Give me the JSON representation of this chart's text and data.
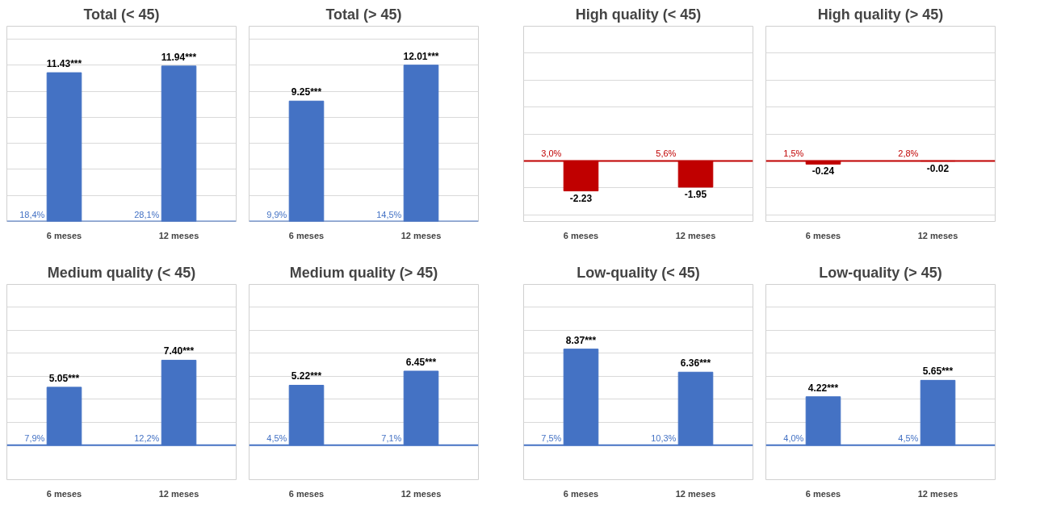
{
  "chart_data": [
    {
      "type": "bar",
      "title": "Total (< 45)",
      "categories": [
        "6 meses",
        "12 meses"
      ],
      "values": [
        11.43,
        11.94
      ],
      "value_labels": [
        "11.43***",
        "11.94***"
      ],
      "color": "#4472c4",
      "ylim": [
        0,
        15
      ],
      "yticks": [
        {
          "value": 0,
          "label": null
        },
        {
          "value": 2,
          "label": null
        },
        {
          "value": 4,
          "label": null
        },
        {
          "value": 6,
          "label": null
        },
        {
          "value": 8,
          "label": null
        },
        {
          "value": 10,
          "label": null
        },
        {
          "value": 12,
          "label": null
        },
        {
          "value": 14,
          "label": null
        }
      ],
      "grid": "y",
      "tick_labels": "x",
      "ref_lines": [
        {
          "axis": "y",
          "value": 0,
          "color": "#4472c4"
        }
      ],
      "annotations": [
        {
          "text": "18,4%",
          "x": "6 meses",
          "y": 0
        },
        {
          "text": "28,1%",
          "x": "12 meses",
          "y": 0
        }
      ]
    },
    {
      "type": "bar",
      "title": "Total (> 45)",
      "categories": [
        "6 meses",
        "12 meses"
      ],
      "values": [
        9.25,
        12.01
      ],
      "value_labels": [
        "9.25***",
        "12.01***"
      ],
      "color": "#4472c4",
      "ylim": [
        0,
        15
      ],
      "yticks": [
        {
          "value": 0,
          "label": null
        },
        {
          "value": 2,
          "label": null
        },
        {
          "value": 4,
          "label": null
        },
        {
          "value": 6,
          "label": null
        },
        {
          "value": 8,
          "label": null
        },
        {
          "value": 10,
          "label": null
        },
        {
          "value": 12,
          "label": null
        },
        {
          "value": 14,
          "label": null
        }
      ],
      "grid": "y",
      "tick_labels": "x",
      "ref_lines": [
        {
          "axis": "y",
          "value": 0,
          "color": "#4472c4"
        }
      ],
      "annotations": [
        {
          "text": "9,9%",
          "x": "6 meses",
          "y": 0
        },
        {
          "text": "14,5%",
          "x": "12 meses",
          "y": 0
        }
      ]
    },
    {
      "type": "bar",
      "title": "High quality (< 45)",
      "categories": [
        "6 meses",
        "12 meses"
      ],
      "values": [
        -2.23,
        -1.95
      ],
      "value_labels": [
        "-2.23",
        "-1.95"
      ],
      "color": "#c00000",
      "ylim": [
        -4.5,
        10
      ],
      "yticks": [
        {
          "value": -4,
          "label": null
        },
        {
          "value": -2,
          "label": null
        },
        {
          "value": 0,
          "label": null
        },
        {
          "value": 2,
          "label": null
        },
        {
          "value": 4,
          "label": null
        },
        {
          "value": 6,
          "label": null
        },
        {
          "value": 8,
          "label": null
        }
      ],
      "grid": "y",
      "tick_labels": "x",
      "ref_lines": [
        {
          "axis": "y",
          "value": 0,
          "color": "#c00000"
        }
      ],
      "annotations": [
        {
          "text": "3,0%",
          "x": "6 meses",
          "y": 0
        },
        {
          "text": "5,6%",
          "x": "12 meses",
          "y": 0
        }
      ]
    },
    {
      "type": "bar",
      "title": "High quality (> 45)",
      "categories": [
        "6 meses",
        "12 meses"
      ],
      "values": [
        -0.24,
        -0.02
      ],
      "value_labels": [
        "-0.24",
        "-0.02"
      ],
      "color": "#c00000",
      "ylim": [
        -4.5,
        10
      ],
      "yticks": [
        {
          "value": -4,
          "label": null
        },
        {
          "value": -2,
          "label": null
        },
        {
          "value": 0,
          "label": null
        },
        {
          "value": 2,
          "label": null
        },
        {
          "value": 4,
          "label": null
        },
        {
          "value": 6,
          "label": null
        },
        {
          "value": 8,
          "label": null
        }
      ],
      "grid": "y",
      "tick_labels": "x",
      "ref_lines": [
        {
          "axis": "y",
          "value": 0,
          "color": "#c00000"
        }
      ],
      "annotations": [
        {
          "text": "1,5%",
          "x": "6 meses",
          "y": 0
        },
        {
          "text": "2,8%",
          "x": "12 meses",
          "y": 0
        }
      ]
    },
    {
      "type": "bar",
      "title": "Medium quality (< 45)",
      "categories": [
        "6 meses",
        "12 meses"
      ],
      "values": [
        5.05,
        7.4
      ],
      "value_labels": [
        "5.05***",
        "7.40***"
      ],
      "color": "#4472c4",
      "ylim": [
        -3,
        14
      ],
      "yticks": [
        {
          "value": 0,
          "label": null
        },
        {
          "value": 2,
          "label": null
        },
        {
          "value": 4,
          "label": null
        },
        {
          "value": 6,
          "label": null
        },
        {
          "value": 8,
          "label": null
        },
        {
          "value": 10,
          "label": null
        },
        {
          "value": 12,
          "label": null
        },
        {
          "value": 14,
          "label": null
        }
      ],
      "grid": "y",
      "tick_labels": "x",
      "ref_lines": [
        {
          "axis": "y",
          "value": 0,
          "color": "#4472c4"
        }
      ],
      "annotations": [
        {
          "text": "7,9%",
          "x": "6 meses",
          "y": 0
        },
        {
          "text": "12,2%",
          "x": "12 meses",
          "y": 0
        }
      ]
    },
    {
      "type": "bar",
      "title": "Medium quality (> 45)",
      "categories": [
        "6 meses",
        "12 meses"
      ],
      "values": [
        5.22,
        6.45
      ],
      "value_labels": [
        "5.22***",
        "6.45***"
      ],
      "color": "#4472c4",
      "ylim": [
        -3,
        14
      ],
      "yticks": [
        {
          "value": 0,
          "label": null
        },
        {
          "value": 2,
          "label": null
        },
        {
          "value": 4,
          "label": null
        },
        {
          "value": 6,
          "label": null
        },
        {
          "value": 8,
          "label": null
        },
        {
          "value": 10,
          "label": null
        },
        {
          "value": 12,
          "label": null
        },
        {
          "value": 14,
          "label": null
        }
      ],
      "grid": "y",
      "tick_labels": "x",
      "ref_lines": [
        {
          "axis": "y",
          "value": 0,
          "color": "#4472c4"
        }
      ],
      "annotations": [
        {
          "text": "4,5%",
          "x": "6 meses",
          "y": 0
        },
        {
          "text": "7,1%",
          "x": "12 meses",
          "y": 0
        }
      ]
    },
    {
      "type": "bar",
      "title": "Low-quality (< 45)",
      "categories": [
        "6 meses",
        "12 meses"
      ],
      "values": [
        8.37,
        6.36
      ],
      "value_labels": [
        "8.37***",
        "6.36***"
      ],
      "color": "#4472c4",
      "ylim": [
        -3,
        14
      ],
      "yticks": [
        {
          "value": 0,
          "label": null
        },
        {
          "value": 2,
          "label": null
        },
        {
          "value": 4,
          "label": null
        },
        {
          "value": 6,
          "label": null
        },
        {
          "value": 8,
          "label": null
        },
        {
          "value": 10,
          "label": null
        },
        {
          "value": 12,
          "label": null
        },
        {
          "value": 14,
          "label": null
        }
      ],
      "grid": "y",
      "tick_labels": "x",
      "ref_lines": [
        {
          "axis": "y",
          "value": 0,
          "color": "#4472c4"
        }
      ],
      "annotations": [
        {
          "text": "7,5%",
          "x": "6 meses",
          "y": 0
        },
        {
          "text": "10,3%",
          "x": "12 meses",
          "y": 0
        }
      ]
    },
    {
      "type": "bar",
      "title": "Low-quality (> 45)",
      "categories": [
        "6 meses",
        "12 meses"
      ],
      "values": [
        4.22,
        5.65
      ],
      "value_labels": [
        "4.22***",
        "5.65***"
      ],
      "color": "#4472c4",
      "ylim": [
        -3,
        14
      ],
      "yticks": [
        {
          "value": 0,
          "label": null
        },
        {
          "value": 2,
          "label": null
        },
        {
          "value": 4,
          "label": null
        },
        {
          "value": 6,
          "label": null
        },
        {
          "value": 8,
          "label": null
        },
        {
          "value": 10,
          "label": null
        },
        {
          "value": 12,
          "label": null
        },
        {
          "value": 14,
          "label": null
        }
      ],
      "grid": "y",
      "tick_labels": "x",
      "ref_lines": [
        {
          "axis": "y",
          "value": 0,
          "color": "#4472c4"
        }
      ],
      "annotations": [
        {
          "text": "4,0%",
          "x": "6 meses",
          "y": 0
        },
        {
          "text": "4,5%",
          "x": "12 meses",
          "y": 0
        }
      ]
    }
  ]
}
